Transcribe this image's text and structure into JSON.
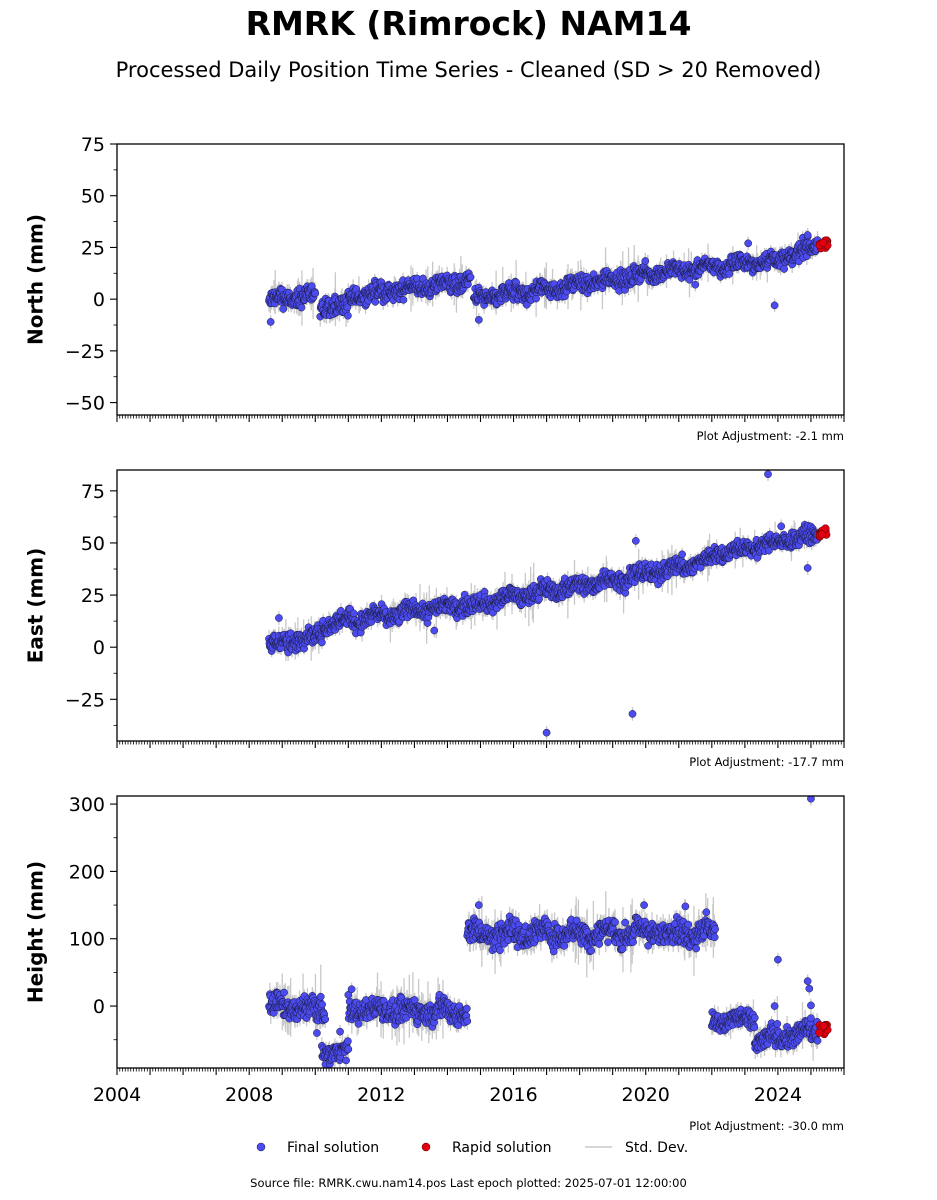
{
  "title": "RMRK (Rimrock) NAM14",
  "subtitle": "Processed Daily Position Time Series - Cleaned (SD > 20 Removed)",
  "source_line": "Source file: RMRK.cwu.nam14.pos  Last epoch plotted: 2025-07-01 12:00:00",
  "colors": {
    "final": "#4b4bf0",
    "rapid": "#e0000f",
    "stddev": "#c8c8c8",
    "edge": "#1a1a3a"
  },
  "legend": {
    "final": "Final solution",
    "rapid": "Rapid solution",
    "stddev": "Std. Dev."
  },
  "chart_data": [
    {
      "type": "scatter",
      "ylabel": "North (mm)",
      "xlim": [
        2004,
        2026
      ],
      "ylim": [
        -56,
        75
      ],
      "yticks": [
        -50,
        -25,
        0,
        25,
        50,
        75
      ],
      "ytick_labels": [
        "−50",
        "−25",
        "0",
        "25",
        "50",
        "75"
      ],
      "xtick_labels_shown": false,
      "adjustment": "Plot Adjustment: -2.1 mm",
      "final_segments": [
        {
          "x": [
            2008.6,
            2010.0
          ],
          "y": [
            -1,
            2
          ],
          "spread": 3.5
        },
        {
          "x": [
            2010.15,
            2011.0
          ],
          "y": [
            -4,
            -4
          ],
          "spread": 3.5
        },
        {
          "x": [
            2011.0,
            2014.7
          ],
          "y": [
            1,
            9
          ],
          "spread": 3
        },
        {
          "x": [
            2014.8,
            2017.1
          ],
          "y": [
            0,
            5
          ],
          "spread": 3
        },
        {
          "x": [
            2017.1,
            2020.0
          ],
          "y": [
            5,
            12
          ],
          "spread": 3
        },
        {
          "x": [
            2020.0,
            2024.0
          ],
          "y": [
            12,
            19
          ],
          "spread": 2.5
        },
        {
          "x": [
            2024.0,
            2025.2
          ],
          "y": [
            19,
            26
          ],
          "spread": 3
        }
      ],
      "outliers": [
        {
          "x": 2008.65,
          "y": -11
        },
        {
          "x": 2014.95,
          "y": -10
        },
        {
          "x": 2021.5,
          "y": 7
        },
        {
          "x": 2023.1,
          "y": 27
        },
        {
          "x": 2023.9,
          "y": -3
        },
        {
          "x": 2024.9,
          "y": 31
        }
      ],
      "rapid": {
        "x": [
          2025.25,
          2025.5
        ],
        "y": [
          24,
          29
        ]
      }
    },
    {
      "type": "scatter",
      "ylabel": "East (mm)",
      "xlim": [
        2004,
        2026
      ],
      "ylim": [
        -45,
        85
      ],
      "yticks": [
        -25,
        0,
        25,
        50,
        75
      ],
      "ytick_labels": [
        "−25",
        "0",
        "25",
        "50",
        "75"
      ],
      "xtick_labels_shown": false,
      "adjustment": "Plot Adjustment: -17.7 mm",
      "final_segments": [
        {
          "x": [
            2008.6,
            2010.2
          ],
          "y": [
            1,
            6
          ],
          "spread": 3
        },
        {
          "x": [
            2010.2,
            2014.6
          ],
          "y": [
            11,
            21
          ],
          "spread": 3
        },
        {
          "x": [
            2014.6,
            2017.0
          ],
          "y": [
            20,
            27
          ],
          "spread": 3
        },
        {
          "x": [
            2017.0,
            2020.0
          ],
          "y": [
            27,
            35
          ],
          "spread": 3
        },
        {
          "x": [
            2020.0,
            2022.0
          ],
          "y": [
            35,
            42
          ],
          "spread": 3
        },
        {
          "x": [
            2022.0,
            2025.2
          ],
          "y": [
            44,
            54
          ],
          "spread": 2.5
        }
      ],
      "outliers": [
        {
          "x": 2008.9,
          "y": 14
        },
        {
          "x": 2013.6,
          "y": 8
        },
        {
          "x": 2017.0,
          "y": -41
        },
        {
          "x": 2019.6,
          "y": -32
        },
        {
          "x": 2019.7,
          "y": 51
        },
        {
          "x": 2023.7,
          "y": 83
        },
        {
          "x": 2024.1,
          "y": 58
        },
        {
          "x": 2024.9,
          "y": 38
        }
      ],
      "rapid": {
        "x": [
          2025.25,
          2025.5
        ],
        "y": [
          53,
          57
        ]
      }
    },
    {
      "type": "scatter",
      "ylabel": "Height (mm)",
      "xlim": [
        2004,
        2026
      ],
      "ylim": [
        -92,
        312
      ],
      "yticks": [
        0,
        100,
        200,
        300
      ],
      "ytick_labels": [
        "0",
        "100",
        "200",
        "300"
      ],
      "xticks": [
        2004,
        2008,
        2012,
        2016,
        2020,
        2024
      ],
      "xtick_labels": [
        "2004",
        "2008",
        "2012",
        "2016",
        "2020",
        "2024"
      ],
      "xtick_labels_shown": true,
      "adjustment": "Plot Adjustment: -30.0 mm",
      "final_segments": [
        {
          "x": [
            2008.6,
            2010.3
          ],
          "y": [
            0,
            -5
          ],
          "spread": 12
        },
        {
          "x": [
            2010.2,
            2011.0
          ],
          "y": [
            -68,
            -68
          ],
          "spread": 9
        },
        {
          "x": [
            2011.0,
            2014.6
          ],
          "y": [
            -5,
            -8
          ],
          "spread": 12
        },
        {
          "x": [
            2014.6,
            2022.1
          ],
          "y": [
            108,
            110
          ],
          "spread": 13
        },
        {
          "x": [
            2022.0,
            2023.3
          ],
          "y": [
            -22,
            -20
          ],
          "spread": 10
        },
        {
          "x": [
            2023.3,
            2025.2
          ],
          "y": [
            -52,
            -38
          ],
          "spread": 11
        }
      ],
      "outliers": [
        {
          "x": 2010.05,
          "y": -40
        },
        {
          "x": 2010.75,
          "y": -38
        },
        {
          "x": 2011.1,
          "y": 25
        },
        {
          "x": 2014.95,
          "y": 150
        },
        {
          "x": 2019.95,
          "y": 150
        },
        {
          "x": 2021.2,
          "y": 148
        },
        {
          "x": 2023.9,
          "y": 0
        },
        {
          "x": 2024.0,
          "y": 69
        },
        {
          "x": 2024.9,
          "y": 37
        },
        {
          "x": 2024.95,
          "y": 26
        },
        {
          "x": 2025.0,
          "y": 1
        },
        {
          "x": 2025.0,
          "y": 308
        }
      ],
      "rapid": {
        "x": [
          2025.25,
          2025.5
        ],
        "y": [
          -42,
          -28
        ]
      }
    }
  ]
}
